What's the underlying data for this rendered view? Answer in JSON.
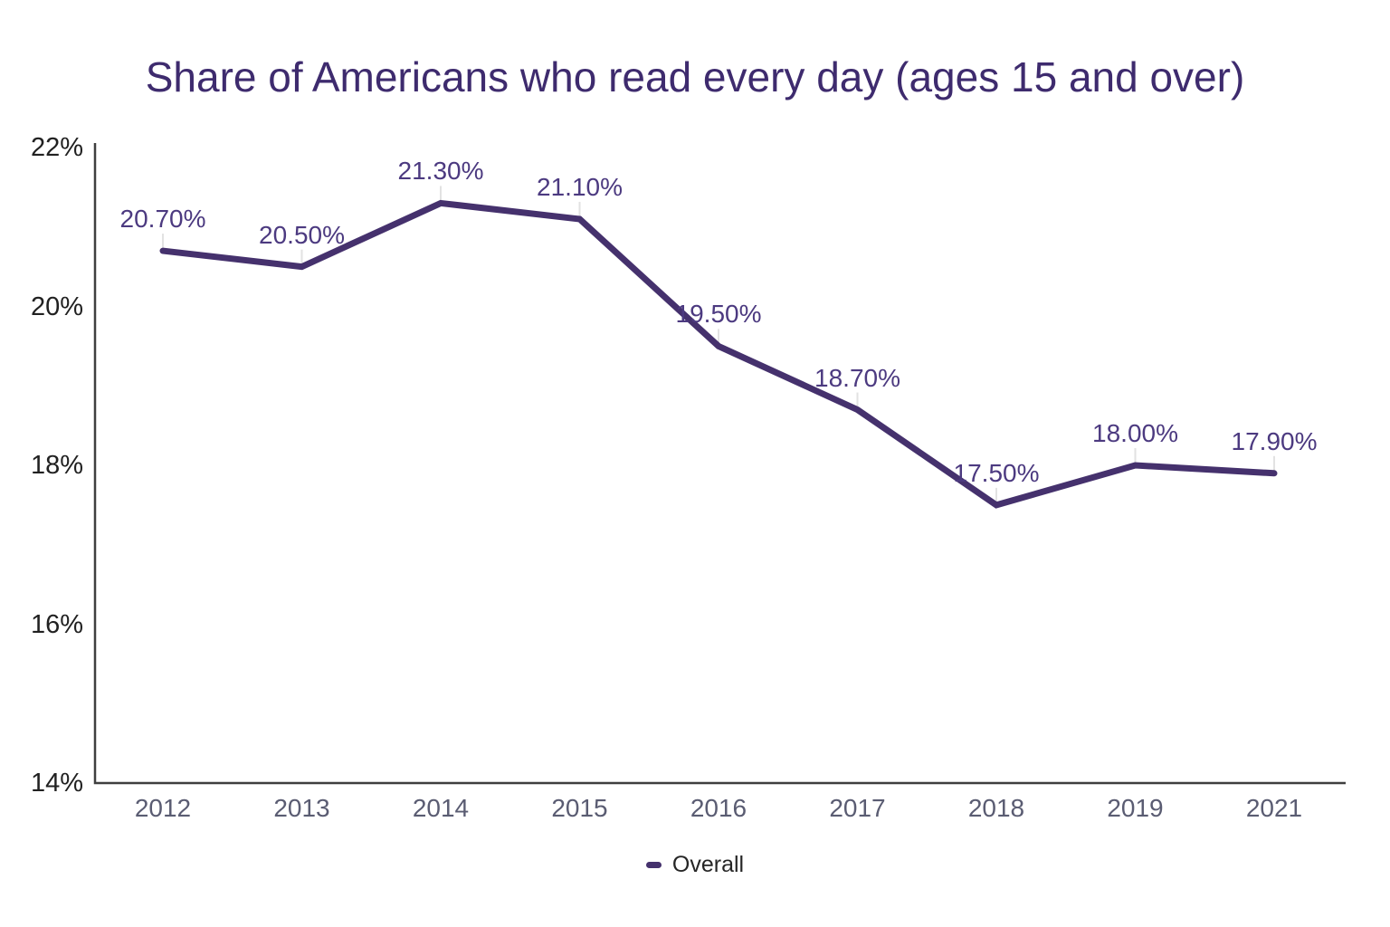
{
  "chart_data": {
    "type": "line",
    "title": "Share of Americans who read every day (ages 15 and over)",
    "categories": [
      "2012",
      "2013",
      "2014",
      "2015",
      "2016",
      "2017",
      "2018",
      "2019",
      "2021"
    ],
    "series": [
      {
        "name": "Overall",
        "values": [
          20.7,
          20.5,
          21.3,
          21.1,
          19.5,
          18.7,
          17.5,
          18.0,
          17.9
        ]
      }
    ],
    "point_labels": [
      "20.70%",
      "20.50%",
      "21.30%",
      "21.10%",
      "19.50%",
      "18.70%",
      "17.50%",
      "18.00%",
      "17.90%"
    ],
    "y_ticks": [
      "22%",
      "20%",
      "18%",
      "16%",
      "14%"
    ],
    "y_tick_values": [
      22,
      20,
      18,
      16,
      14
    ],
    "ylim": [
      14,
      22
    ],
    "xlabel": "",
    "ylabel": "",
    "grid": false,
    "legend_position": "bottom"
  },
  "colors": {
    "line": "#45316d",
    "point_label": "#4c3a80",
    "title": "#3e2b6e",
    "y_tick": "#212121",
    "x_tick": "#5a5c72",
    "axis": "#3f3f3f",
    "leader_line": "#e2e2e2",
    "legend_text": "#262626",
    "background": "#ffffff"
  }
}
